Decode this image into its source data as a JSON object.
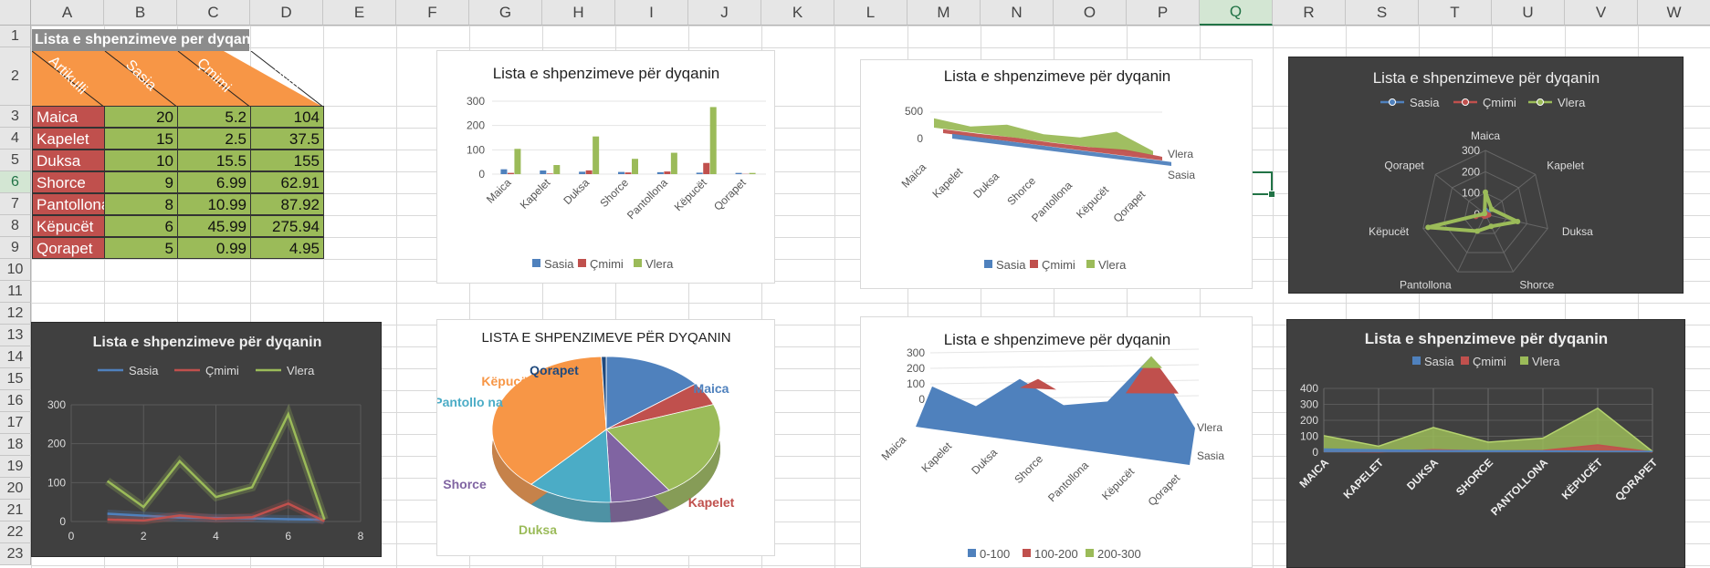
{
  "sheet": {
    "columns": [
      "A",
      "B",
      "C",
      "D",
      "E",
      "F",
      "G",
      "H",
      "I",
      "J",
      "K",
      "L",
      "M",
      "N",
      "O",
      "P",
      "Q",
      "R",
      "S",
      "T",
      "U",
      "V",
      "W"
    ],
    "rows": [
      "1",
      "2",
      "3",
      "4",
      "5",
      "6",
      "7",
      "8",
      "9",
      "10",
      "11",
      "12",
      "13",
      "14",
      "15",
      "16",
      "17",
      "18",
      "19",
      "20",
      "21",
      "22",
      "23"
    ],
    "selected_column": "Q",
    "selected_row": "6",
    "title": "Lista e shpenzimeve per dyqanin",
    "headers": [
      "Artikulli",
      "Sasia",
      "Çmimi",
      "Vlera"
    ],
    "items": [
      {
        "name": "Maica",
        "qty": "20",
        "price": "5.2",
        "value": "104"
      },
      {
        "name": "Kapelet",
        "qty": "15",
        "price": "2.5",
        "value": "37.5"
      },
      {
        "name": "Duksa",
        "qty": "10",
        "price": "15.5",
        "value": "155"
      },
      {
        "name": "Shorce",
        "qty": "9",
        "price": "6.99",
        "value": "62.91"
      },
      {
        "name": "Pantollona",
        "qty": "8",
        "price": "10.99",
        "value": "87.92"
      },
      {
        "name": "Këpucët",
        "qty": "6",
        "price": "45.99",
        "value": "275.94"
      },
      {
        "name": "Qorapet",
        "qty": "5",
        "price": "0.99",
        "value": "4.95"
      }
    ]
  },
  "colors": {
    "sasia": "#4f81bd",
    "cmimi": "#c0504d",
    "vlera": "#9bbb59",
    "header_orange": "#f79646",
    "qorapet": "#1f497d",
    "kepucet": "#f79646",
    "pantollona": "#4bacc6",
    "shorce": "#8064a2",
    "selection": "#217346"
  },
  "chart_data": [
    {
      "type": "bar",
      "title": "Lista e shpenzimeve për dyqanin",
      "categories": [
        "Maica",
        "Kapelet",
        "Duksa",
        "Shorce",
        "Pantollona",
        "Këpucët",
        "Qorapet"
      ],
      "series": [
        {
          "name": "Sasia",
          "values": [
            20,
            15,
            10,
            9,
            8,
            6,
            5
          ]
        },
        {
          "name": "Çmimi",
          "values": [
            5.2,
            2.5,
            15.5,
            6.99,
            10.99,
            45.99,
            0.99
          ]
        },
        {
          "name": "Vlera",
          "values": [
            104,
            37.5,
            155,
            62.91,
            87.92,
            275.94,
            4.95
          ]
        }
      ],
      "yticks": [
        "0",
        "100",
        "200",
        "300"
      ],
      "ylim": [
        0,
        300
      ],
      "legend": "bottom"
    },
    {
      "type": "line",
      "title": "Lista e shpenzimeve për dyqanin",
      "subtype": "3d-line",
      "categories": [
        "Maica",
        "Kapelet",
        "Duksa",
        "Shorce",
        "Pantollona",
        "Këpucët",
        "Qorapet"
      ],
      "series": [
        {
          "name": "Sasia",
          "values": [
            20,
            15,
            10,
            9,
            8,
            6,
            5
          ]
        },
        {
          "name": "Çmimi",
          "values": [
            5.2,
            2.5,
            15.5,
            6.99,
            10.99,
            45.99,
            0.99
          ]
        },
        {
          "name": "Vlera",
          "values": [
            104,
            37.5,
            155,
            62.91,
            87.92,
            275.94,
            4.95
          ]
        }
      ],
      "yticks": [
        "0",
        "500"
      ],
      "depth_labels": [
        "Vlera",
        "Sasia"
      ],
      "legend": "bottom"
    },
    {
      "type": "radar",
      "title": "Lista e shpenzimeve për dyqanin",
      "categories": [
        "Maica",
        "Kapelet",
        "Duksa",
        "Shorce",
        "Pantollona",
        "Këpucët",
        "Qorapet"
      ],
      "series": [
        {
          "name": "Sasia",
          "values": [
            20,
            15,
            10,
            9,
            8,
            6,
            5
          ]
        },
        {
          "name": "Çmimi",
          "values": [
            5.2,
            2.5,
            15.5,
            6.99,
            10.99,
            45.99,
            0.99
          ]
        },
        {
          "name": "Vlera",
          "values": [
            104,
            37.5,
            155,
            62.91,
            87.92,
            275.94,
            4.95
          ]
        }
      ],
      "rticks": [
        "0",
        "100",
        "200",
        "300"
      ],
      "rlim": [
        0,
        300
      ],
      "legend": "top"
    },
    {
      "type": "line",
      "title": "Lista e shpenzimeve për dyqanin",
      "subtype": "scatter-lines",
      "x": [
        1,
        2,
        3,
        4,
        5,
        6,
        7
      ],
      "series": [
        {
          "name": "Sasia",
          "values": [
            20,
            15,
            10,
            9,
            8,
            6,
            5
          ]
        },
        {
          "name": "Çmimi",
          "values": [
            5.2,
            2.5,
            15.5,
            6.99,
            10.99,
            45.99,
            0.99
          ]
        },
        {
          "name": "Vlera",
          "values": [
            104,
            37.5,
            155,
            62.91,
            87.92,
            275.94,
            4.95
          ]
        }
      ],
      "xticks": [
        "0",
        "2",
        "4",
        "6",
        "8"
      ],
      "yticks": [
        "0",
        "100",
        "200",
        "300"
      ],
      "xlim": [
        0,
        8
      ],
      "ylim": [
        0,
        300
      ],
      "legend": "top"
    },
    {
      "type": "pie",
      "title": "LISTA E SHPENZIMEVE PËR DYQANIN",
      "categories": [
        "Maica",
        "Kapelet",
        "Duksa",
        "Shorce",
        "Pantollona",
        "Këpucët",
        "Qorapet"
      ],
      "values": [
        104,
        37.5,
        155,
        62.91,
        87.92,
        275.94,
        4.95
      ],
      "slice_labels": [
        "Maica",
        "Kapelet",
        "Duksa",
        "Shorce",
        "Pantollo na",
        "Këpucët",
        "Qorapet"
      ]
    },
    {
      "type": "area",
      "title": "Lista e shpenzimeve për dyqanin",
      "subtype": "3d-surface",
      "categories": [
        "Maica",
        "Kapelet",
        "Duksa",
        "Shorce",
        "Pantollona",
        "Këpucët",
        "Qorapet"
      ],
      "yticks": [
        "0",
        "100",
        "200",
        "300"
      ],
      "depth_labels": [
        "Vlera",
        "Sasia"
      ],
      "legend_bands": [
        "0-100",
        "100-200",
        "200-300"
      ],
      "legend": "bottom"
    },
    {
      "type": "area",
      "title": "Lista e shpenzimeve për dyqanin",
      "categories": [
        "MAICA",
        "KAPELET",
        "DUKSA",
        "SHORCE",
        "PANTOLLONA",
        "KËPUCËT",
        "QORAPET"
      ],
      "series": [
        {
          "name": "Sasia",
          "values": [
            20,
            15,
            10,
            9,
            8,
            6,
            5
          ]
        },
        {
          "name": "Çmimi",
          "values": [
            5.2,
            2.5,
            15.5,
            6.99,
            10.99,
            45.99,
            0.99
          ]
        },
        {
          "name": "Vlera",
          "values": [
            104,
            37.5,
            155,
            62.91,
            87.92,
            275.94,
            4.95
          ]
        }
      ],
      "yticks": [
        "0",
        "100",
        "200",
        "300",
        "400"
      ],
      "ylim": [
        0,
        400
      ],
      "legend": "top"
    }
  ]
}
